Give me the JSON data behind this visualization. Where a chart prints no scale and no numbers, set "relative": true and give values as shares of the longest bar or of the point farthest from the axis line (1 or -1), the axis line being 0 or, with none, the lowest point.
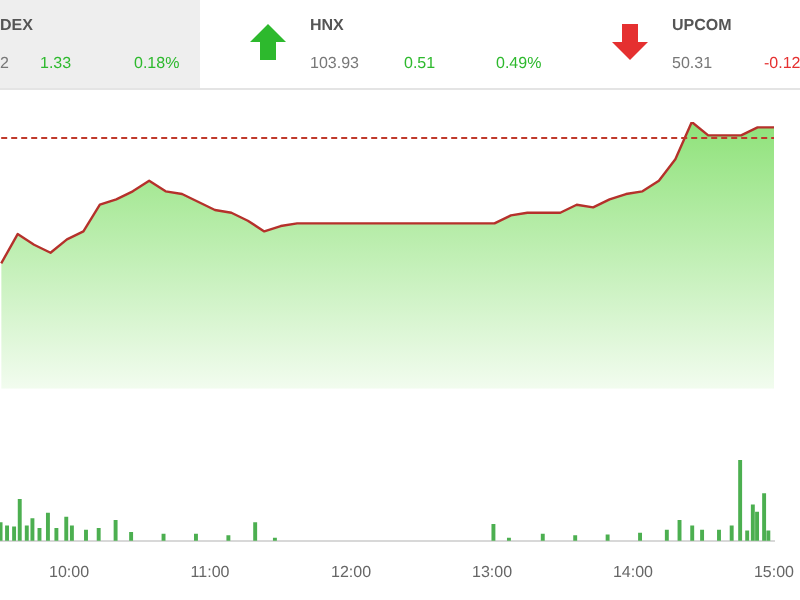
{
  "chart_data": [
    {
      "type": "other",
      "annotations": [
        "DEX",
        "2",
        "1.33",
        "0.18%",
        "HNX",
        "103.93",
        "0.51",
        "0.49%",
        "UPCOM",
        "50.31",
        "-0.12"
      ]
    },
    {
      "type": "area",
      "relative": true,
      "tick_labels": false,
      "legend": false,
      "categories": [
        null,
        null,
        null,
        null,
        null,
        null,
        null,
        null,
        null,
        null,
        null,
        null,
        null,
        null,
        null,
        null,
        null,
        null,
        null,
        null,
        null,
        null,
        null,
        null,
        null,
        null,
        null,
        null,
        null,
        null,
        null,
        null,
        null,
        null,
        null,
        null,
        null,
        null,
        null,
        null,
        null,
        null,
        null,
        null,
        null,
        null,
        null,
        null
      ],
      "series": [
        {
          "color": "#b5312b",
          "values": [
            0.47,
            0.58,
            0.54,
            0.51,
            0.56,
            0.59,
            0.69,
            0.71,
            0.74,
            0.78,
            0.74,
            0.73,
            0.7,
            0.67,
            0.66,
            0.63,
            0.59,
            0.61,
            0.62,
            0.62,
            0.62,
            0.62,
            0.62,
            0.62,
            0.62,
            0.62,
            0.62,
            0.62,
            0.62,
            0.62,
            0.62,
            0.65,
            0.66,
            0.66,
            0.66,
            0.69,
            0.68,
            0.71,
            0.73,
            0.74,
            0.78,
            0.86,
            1,
            0.95,
            0.95,
            0.95,
            0.98,
            0.98
          ]
        }
      ],
      "ref_lines": [
        {
          "axis": "y",
          "value": 0.94,
          "color": "#c0392b",
          "line_style": "dashed"
        }
      ]
    },
    {
      "type": "bar",
      "relative": true,
      "tick_labels": "x",
      "legend": false,
      "xlim": [
        9.51,
        15.0
      ],
      "xticks": [
        {
          "value": 10,
          "label": "10:00"
        },
        {
          "value": 11,
          "label": "11:00"
        },
        {
          "value": 12,
          "label": "12:00"
        },
        {
          "value": 13,
          "label": "13:00"
        },
        {
          "value": 14,
          "label": "14:00"
        },
        {
          "value": 15,
          "label": "15:00"
        }
      ],
      "series": [
        {
          "color": "#4caf50",
          "x": [
            9.514,
            9.56,
            9.61,
            9.65,
            9.7,
            9.74,
            9.79,
            9.85,
            9.91,
            9.98,
            10.02,
            10.12,
            10.21,
            10.33,
            10.44,
            10.67,
            10.9,
            11.13,
            11.32,
            11.46,
            13.01,
            13.12,
            13.36,
            13.59,
            13.82,
            14.05,
            14.24,
            14.33,
            14.42,
            14.49,
            14.61,
            14.7,
            14.76,
            14.81,
            14.85,
            14.88,
            14.93,
            14.96
          ],
          "values": [
            0.22,
            0.18,
            0.17,
            0.51,
            0.18,
            0.27,
            0.15,
            0.34,
            0.15,
            0.29,
            0.18,
            0.13,
            0.15,
            0.25,
            0.1,
            0.08,
            0.08,
            0.06,
            0.22,
            0.03,
            0.2,
            0.03,
            0.08,
            0.06,
            0.07,
            0.09,
            0.13,
            0.25,
            0.18,
            0.13,
            0.13,
            0.18,
            1,
            0.12,
            0.44,
            0.35,
            0.58,
            0.12
          ]
        }
      ]
    }
  ]
}
